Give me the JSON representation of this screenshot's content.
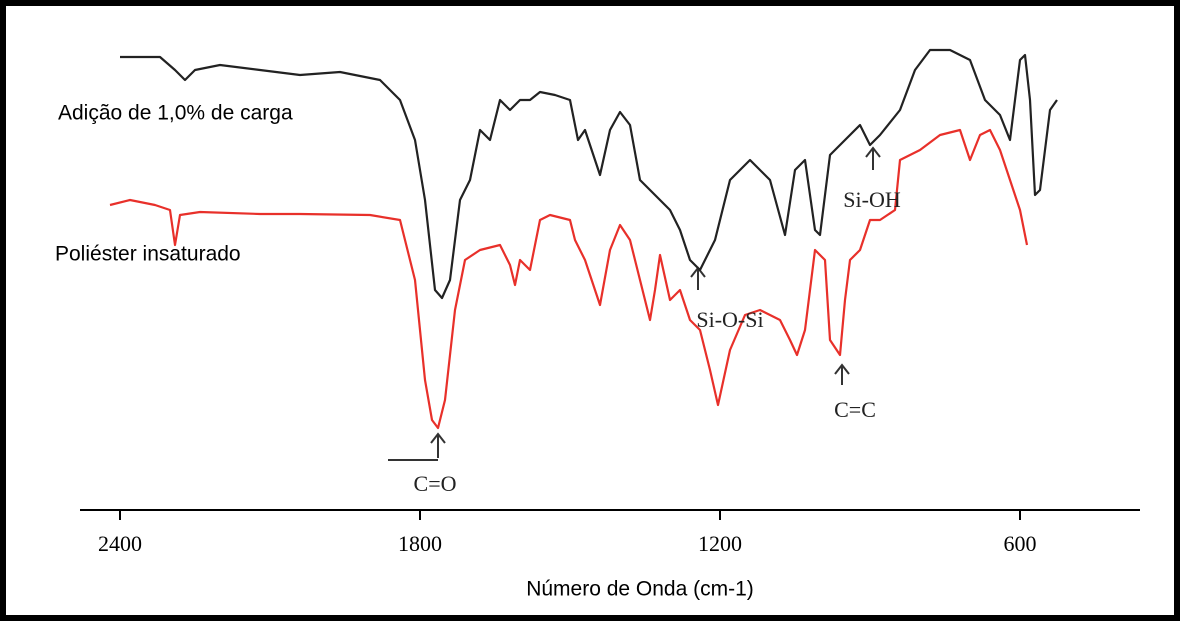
{
  "chart_data": {
    "type": "line",
    "x_label": "Número de Onda (cm-1)",
    "xlim": [
      2480,
      360
    ],
    "xticks": [
      2400,
      1800,
      1200,
      600
    ],
    "ylim": [
      0,
      100
    ],
    "series": [
      {
        "name": "Adição de 1,0% de carga",
        "color": "#222222",
        "x": [
          2400,
          2320,
          2290,
          2270,
          2250,
          2200,
          2120,
          2040,
          1960,
          1880,
          1840,
          1810,
          1790,
          1770,
          1756,
          1740,
          1720,
          1700,
          1680,
          1660,
          1640,
          1620,
          1600,
          1580,
          1560,
          1530,
          1500,
          1484,
          1470,
          1440,
          1420,
          1400,
          1380,
          1360,
          1340,
          1320,
          1300,
          1280,
          1260,
          1240,
          1210,
          1180,
          1140,
          1100,
          1070,
          1050,
          1030,
          1010,
          1000,
          980,
          950,
          920,
          900,
          880,
          840,
          810,
          780,
          740,
          700,
          670,
          640,
          620,
          600,
          590,
          580,
          570,
          560,
          540,
          526
        ],
        "values": [
          94.6,
          94.6,
          92,
          90,
          92,
          93,
          92,
          91,
          91.6,
          90,
          86,
          78,
          66,
          48,
          46.4,
          50,
          66,
          70,
          80,
          78,
          86,
          84,
          86,
          86,
          87.6,
          87,
          86,
          78,
          80,
          71,
          80,
          83.6,
          81,
          70,
          68,
          66,
          64,
          60,
          54,
          52,
          58,
          70,
          74,
          70,
          59,
          72,
          74,
          60,
          59,
          75,
          78,
          81,
          77,
          79,
          84,
          92,
          96,
          96,
          94,
          86,
          83,
          78,
          94,
          95,
          86,
          67,
          68,
          84,
          86
        ]
      },
      {
        "name": "Poliéster insaturado",
        "color": "#e8302a",
        "x": [
          2420,
          2380,
          2330,
          2300,
          2290,
          2280,
          2240,
          2120,
          2040,
          1900,
          1840,
          1810,
          1790,
          1776,
          1764,
          1750,
          1730,
          1710,
          1680,
          1640,
          1620,
          1610,
          1600,
          1580,
          1560,
          1540,
          1500,
          1490,
          1470,
          1440,
          1420,
          1400,
          1380,
          1360,
          1340,
          1330,
          1320,
          1300,
          1280,
          1260,
          1240,
          1220,
          1204,
          1180,
          1150,
          1120,
          1080,
          1060,
          1046,
          1030,
          1010,
          990,
          980,
          960,
          950,
          940,
          920,
          900,
          880,
          850,
          840,
          800,
          760,
          720,
          700,
          680,
          660,
          640,
          620,
          600,
          586
        ],
        "values": [
          65,
          66,
          65,
          64,
          57,
          63,
          63.6,
          63.2,
          63.2,
          63,
          62,
          50,
          30,
          22,
          20.4,
          26,
          44,
          54,
          56,
          57,
          53,
          49,
          54,
          52,
          62,
          63,
          62,
          58,
          54,
          45,
          56,
          61,
          58,
          50,
          42,
          48,
          55,
          46,
          48,
          42,
          40,
          32,
          25,
          36,
          43,
          44,
          42,
          38,
          35,
          40,
          56,
          54,
          38,
          35,
          46,
          54,
          56,
          62,
          62,
          64,
          74,
          76,
          79,
          80,
          74,
          79,
          80,
          76,
          70,
          64,
          57
        ]
      }
    ],
    "annotations": [
      "Si-OH",
      "Si-O-Si",
      "C=C",
      "C=O"
    ]
  }
}
